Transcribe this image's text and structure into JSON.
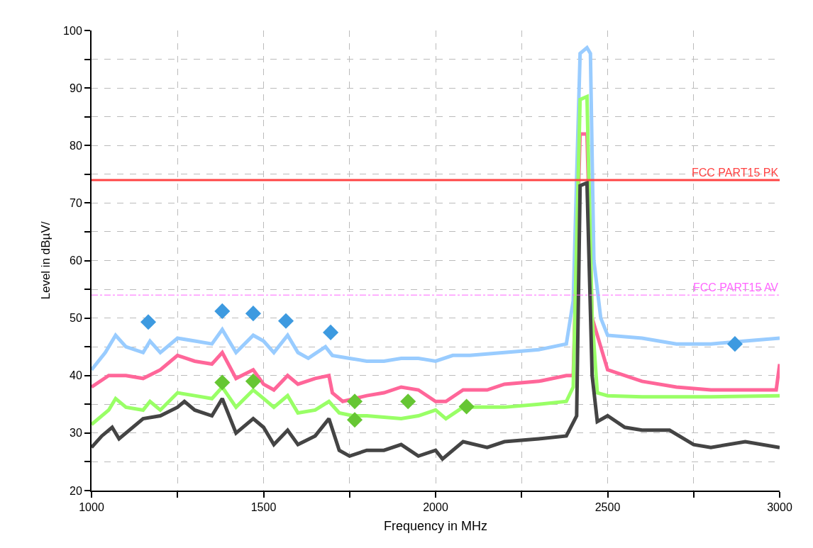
{
  "chart_data": {
    "type": "line",
    "xlabel": "Frequency in MHz",
    "ylabel": "Level in dBµV/",
    "xlim": [
      1000,
      3000
    ],
    "ylim": [
      20,
      100
    ],
    "xticks": [
      1000,
      {
        "value": 1250,
        "label": null
      },
      1500,
      {
        "value": 1750,
        "label": null
      },
      2000,
      {
        "value": 2250,
        "label": null
      },
      2500,
      {
        "value": 2750,
        "label": null
      },
      3000
    ],
    "yticks": [
      20,
      {
        "value": 25,
        "label": null
      },
      30,
      {
        "value": 35,
        "label": null
      },
      40,
      {
        "value": 45,
        "label": null
      },
      50,
      {
        "value": 55,
        "label": null
      },
      60,
      {
        "value": 65,
        "label": null
      },
      70,
      {
        "value": 75,
        "label": null
      },
      80,
      {
        "value": 85,
        "label": null
      },
      90,
      {
        "value": 95,
        "label": null
      },
      100
    ],
    "grid": true,
    "legend": false,
    "marker": "none",
    "series": [
      {
        "color": "#99ccff",
        "x": [
          1000,
          1040,
          1070,
          1100,
          1150,
          1170,
          1200,
          1250,
          1300,
          1350,
          1380,
          1420,
          1470,
          1500,
          1530,
          1570,
          1600,
          1630,
          1680,
          1700,
          1750,
          1800,
          1850,
          1900,
          1950,
          2000,
          2050,
          2100,
          2200,
          2300,
          2380,
          2400,
          2420,
          2440,
          2450,
          2460,
          2480,
          2500,
          2600,
          2700,
          2800,
          2900,
          3000
        ],
        "values": [
          41,
          44,
          47,
          45,
          44,
          46,
          44,
          46.5,
          46,
          45.5,
          48,
          44,
          47,
          46,
          44,
          47,
          44,
          43,
          45,
          43.5,
          43,
          42.5,
          42.5,
          43,
          43,
          42.5,
          43.5,
          43.5,
          44,
          44.5,
          45.5,
          53,
          96,
          97,
          96,
          60,
          50,
          47,
          46.5,
          45.5,
          45.5,
          46,
          46.5
        ]
      },
      {
        "color": "#ff6699",
        "x": [
          1000,
          1050,
          1100,
          1150,
          1200,
          1250,
          1300,
          1350,
          1380,
          1420,
          1470,
          1500,
          1530,
          1570,
          1600,
          1650,
          1690,
          1700,
          1730,
          1800,
          1850,
          1900,
          1950,
          2000,
          2030,
          2080,
          2150,
          2200,
          2300,
          2380,
          2400,
          2420,
          2440,
          2455,
          2500,
          2600,
          2700,
          2800,
          2900,
          2990,
          3000
        ],
        "values": [
          38,
          40,
          40,
          39.5,
          41,
          43.5,
          42.5,
          42,
          44,
          39.5,
          41,
          38.5,
          37.5,
          40,
          38.5,
          39.5,
          40,
          37,
          35.5,
          36.5,
          37,
          38,
          37.5,
          35.5,
          35.5,
          37.5,
          37.5,
          38.5,
          39,
          40,
          40,
          82,
          82,
          50,
          41,
          39,
          38,
          37.5,
          37.5,
          37.5,
          42
        ]
      },
      {
        "color": "#99ff66",
        "x": [
          1000,
          1050,
          1070,
          1100,
          1150,
          1170,
          1200,
          1250,
          1300,
          1350,
          1380,
          1420,
          1470,
          1500,
          1530,
          1570,
          1600,
          1650,
          1690,
          1720,
          1760,
          1800,
          1900,
          1950,
          2000,
          2030,
          2080,
          2150,
          2200,
          2300,
          2380,
          2400,
          2420,
          2440,
          2455,
          2470,
          2500,
          2600,
          2800,
          3000
        ],
        "values": [
          31.5,
          34,
          36,
          34.5,
          34,
          35.5,
          34,
          37,
          36.5,
          36,
          38,
          34.5,
          37.5,
          36,
          34.5,
          36.5,
          33.5,
          34,
          35.5,
          33.5,
          33,
          33,
          32.5,
          33,
          34,
          32.5,
          34.5,
          34.5,
          34.5,
          35,
          35.5,
          38,
          88,
          88.5,
          50,
          37,
          36.5,
          36.3,
          36.3,
          36.5
        ]
      },
      {
        "color": "#444444",
        "x": [
          1000,
          1030,
          1060,
          1080,
          1150,
          1200,
          1250,
          1270,
          1300,
          1350,
          1380,
          1420,
          1470,
          1500,
          1530,
          1570,
          1600,
          1650,
          1690,
          1720,
          1750,
          1800,
          1850,
          1900,
          1950,
          2000,
          2020,
          2080,
          2150,
          2200,
          2300,
          2380,
          2410,
          2420,
          2440,
          2455,
          2470,
          2500,
          2550,
          2600,
          2680,
          2750,
          2800,
          2900,
          3000
        ],
        "values": [
          27.5,
          29.5,
          31,
          29,
          32.5,
          33,
          34.5,
          35.5,
          34,
          33,
          36,
          30,
          32.5,
          31,
          28,
          30.5,
          28,
          29.5,
          32.5,
          27,
          26,
          27,
          27,
          28,
          26,
          27,
          25.5,
          28.5,
          27.5,
          28.5,
          29,
          29.5,
          33,
          73,
          73.5,
          40,
          32,
          33,
          31,
          30.5,
          30.5,
          28,
          27.5,
          28.5,
          27.5
        ]
      },
      {
        "type": "scatter",
        "marker": "diamond",
        "color": "#3d9ae0",
        "x": [
          1165,
          1380,
          1470,
          1565,
          1695,
          2870
        ],
        "values": [
          49.3,
          51.2,
          50.8,
          49.5,
          47.5,
          45.5
        ]
      },
      {
        "type": "scatter",
        "marker": "diamond",
        "color": "#66c633",
        "x": [
          1380,
          1470,
          1765,
          1765,
          1920,
          2090
        ],
        "values": [
          38.8,
          39,
          35.5,
          32.3,
          35.5,
          34.6
        ]
      }
    ],
    "ref_lines": [
      {
        "axis": "y",
        "value": 74,
        "label": "FCC PART15 PK",
        "color": "#ff4444",
        "line_style": "solid"
      },
      {
        "axis": "y",
        "value": 54,
        "label": "FCC PART15 AV",
        "color": "#ff66ff",
        "line_style": "dashed"
      }
    ]
  }
}
